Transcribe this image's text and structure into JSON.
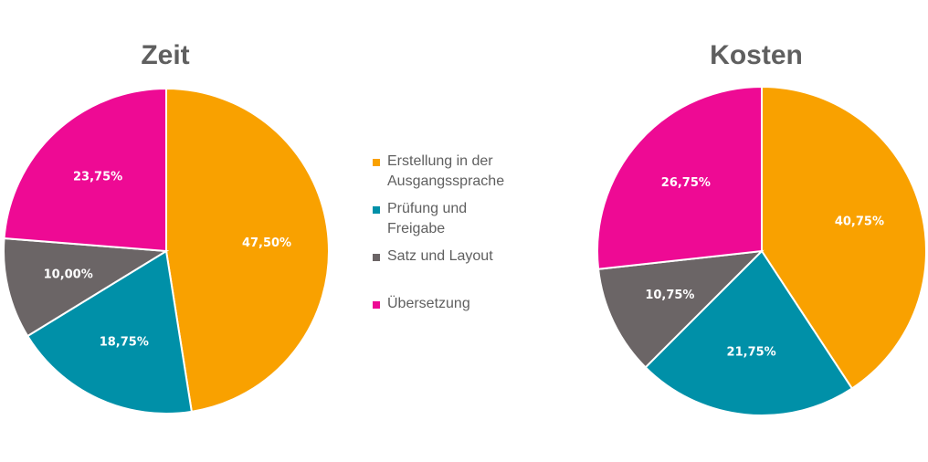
{
  "chart_data": [
    {
      "type": "pie",
      "title": "Zeit",
      "categories": [
        "Erstellung in der Ausgangssprache",
        "Prüfung und Freigabe",
        "Satz und Layout",
        "Übersetzung"
      ],
      "values": [
        47.5,
        18.75,
        10.0,
        23.75
      ],
      "labels": [
        "47,50%",
        "18,75%",
        "10,00%",
        "23,75%"
      ]
    },
    {
      "type": "pie",
      "title": "Kosten",
      "categories": [
        "Erstellung in der Ausgangssprache",
        "Prüfung und Freigabe",
        "Satz und Layout",
        "Übersetzung"
      ],
      "values": [
        40.75,
        21.75,
        10.75,
        26.75
      ],
      "labels": [
        "40,75%",
        "21,75%",
        "10,75%",
        "26,75%"
      ]
    }
  ],
  "legend": {
    "items": [
      {
        "line1": "Erstellung in der",
        "line2": "Ausgangssprache",
        "color": "#f9a100"
      },
      {
        "line1": "Prüfung und",
        "line2": "Freigabe",
        "color": "#0090a8"
      },
      {
        "line1": "Satz und Layout",
        "line2": "",
        "color": "#6b6566"
      },
      {
        "line1": "Übersetzung",
        "line2": "",
        "color": "#ee0a94"
      }
    ]
  }
}
